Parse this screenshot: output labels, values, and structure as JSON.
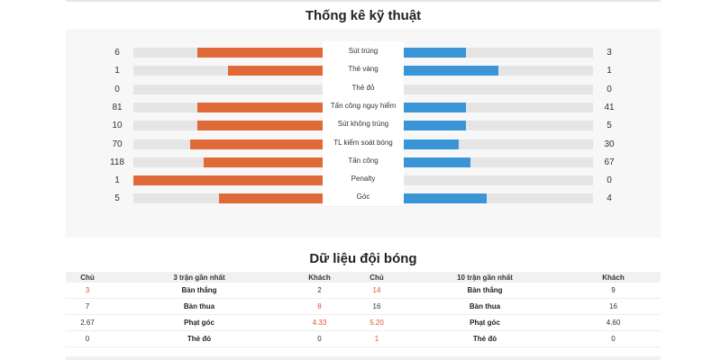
{
  "stats_title": "Thống kê kỹ thuật",
  "stats": [
    {
      "label": "Sút trúng",
      "home": "6",
      "away": "3",
      "home_pct": 0.66,
      "away_pct": 0.33
    },
    {
      "label": "Thẻ vàng",
      "home": "1",
      "away": "1",
      "home_pct": 0.5,
      "away_pct": 0.5
    },
    {
      "label": "Thẻ đỏ",
      "home": "0",
      "away": "0",
      "home_pct": 0,
      "away_pct": 0
    },
    {
      "label": "Tấn công nguy hiểm",
      "home": "81",
      "away": "41",
      "home_pct": 0.66,
      "away_pct": 0.33
    },
    {
      "label": "Sút không trúng",
      "home": "10",
      "away": "5",
      "home_pct": 0.66,
      "away_pct": 0.33
    },
    {
      "label": "TL kiểm soát bóng",
      "home": "70",
      "away": "30",
      "home_pct": 0.7,
      "away_pct": 0.29
    },
    {
      "label": "Tấn công",
      "home": "118",
      "away": "67",
      "home_pct": 0.63,
      "away_pct": 0.35
    },
    {
      "label": "Penalty",
      "home": "1",
      "away": "0",
      "home_pct": 1.0,
      "away_pct": 0
    },
    {
      "label": "Góc",
      "home": "5",
      "away": "4",
      "home_pct": 0.55,
      "away_pct": 0.44
    }
  ],
  "team_title": "Dữ liệu đội bóng",
  "team_table": {
    "headers": [
      "Chủ",
      "3 trận gần nhất",
      "Khách",
      "Chủ",
      "10 trận gần nhất",
      "Khách"
    ],
    "rows": [
      {
        "c1": "3",
        "c1_red": true,
        "label1": "Bàn thắng",
        "c2": "2",
        "c2_red": false,
        "c3": "14",
        "c3_red": true,
        "label2": "Bàn thắng",
        "c4": "9",
        "c4_red": false
      },
      {
        "c1": "7",
        "c1_red": false,
        "label1": "Bàn thua",
        "c2": "8",
        "c2_red": true,
        "c3": "16",
        "c3_red": false,
        "label2": "Bàn thua",
        "c4": "16",
        "c4_red": false
      },
      {
        "c1": "2.67",
        "c1_red": false,
        "label1": "Phạt góc",
        "c2": "4.33",
        "c2_red": true,
        "c3": "5.20",
        "c3_red": true,
        "label2": "Phạt góc",
        "c4": "4.60",
        "c4_red": false
      },
      {
        "c1": "0",
        "c1_red": false,
        "label1": "Thẻ đỏ",
        "c2": "0",
        "c2_red": false,
        "c3": "1",
        "c3_red": true,
        "label2": "Thẻ đỏ",
        "c4": "0",
        "c4_red": false
      }
    ]
  },
  "colors": {
    "home_bar": "#e06a37",
    "away_bar": "#3a95d6",
    "highlight": "#e0522f"
  }
}
